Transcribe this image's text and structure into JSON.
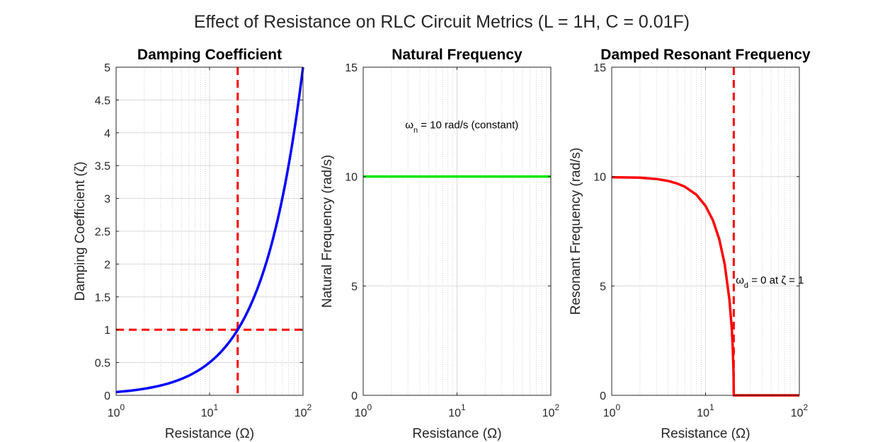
{
  "figure": {
    "title": "Effect of Resistance on RLC Circuit Metrics (L = 1H, C = 0.01F)"
  },
  "colors": {
    "zeta_line": "#0000ff",
    "natural_line": "#00e600",
    "damped_line": "#ff0000",
    "reference_line": "#ff0000"
  },
  "chart_data": [
    {
      "type": "line",
      "title": "Damping Coefficient",
      "xlabel": "Resistance (Ω)",
      "ylabel": "Damping Coefficient (ζ)",
      "xscale": "log",
      "xlim": [
        1,
        100
      ],
      "ylim": [
        0,
        5
      ],
      "yticks": [
        0,
        0.5,
        1,
        1.5,
        2,
        2.5,
        3,
        3.5,
        4,
        4.5,
        5
      ],
      "xticks": [
        1,
        10,
        100
      ],
      "grid": true,
      "series": [
        {
          "x": [
            1,
            1.5,
            2,
            3,
            4,
            5,
            7,
            10,
            15,
            20,
            30,
            40,
            50,
            70,
            100
          ],
          "y": [
            0.05,
            0.075,
            0.1,
            0.15,
            0.2,
            0.25,
            0.35,
            0.5,
            0.75,
            1.0,
            1.5,
            2.0,
            2.5,
            3.5,
            5.0
          ]
        }
      ],
      "reference_lines": [
        {
          "orientation": "vertical",
          "x": 20
        },
        {
          "orientation": "horizontal",
          "y": 1
        }
      ],
      "annotations": []
    },
    {
      "type": "line",
      "title": "Natural Frequency",
      "xlabel": "Resistance (Ω)",
      "ylabel": "Natural Frequency (rad/s)",
      "xscale": "log",
      "xlim": [
        1,
        100
      ],
      "ylim": [
        0,
        15
      ],
      "yticks": [
        0,
        5,
        10,
        15
      ],
      "xticks": [
        1,
        10,
        100
      ],
      "grid": true,
      "series": [
        {
          "x": [
            1,
            100
          ],
          "y": [
            10,
            10
          ]
        }
      ],
      "reference_lines": [],
      "annotations": [
        {
          "main": "ω",
          "sub": "n",
          "rest": " = 10 rad/s (constant)",
          "x": 2.8,
          "y": 12.2
        }
      ]
    },
    {
      "type": "line",
      "title": "Damped Resonant Frequency",
      "xlabel": "Resistance (Ω)",
      "ylabel": "Resonant Frequency (rad/s)",
      "xscale": "log",
      "xlim": [
        1,
        100
      ],
      "ylim": [
        0,
        15
      ],
      "yticks": [
        0,
        5,
        10,
        15
      ],
      "xticks": [
        1,
        10,
        100
      ],
      "grid": true,
      "series": [
        {
          "x": [
            1,
            2,
            3,
            4,
            5,
            6,
            8,
            10,
            12,
            14,
            16,
            18,
            19,
            19.5,
            19.9,
            20,
            30,
            50,
            100
          ],
          "y": [
            9.97,
            9.95,
            9.89,
            9.8,
            9.68,
            9.54,
            9.17,
            8.66,
            8.0,
            7.14,
            6.0,
            4.36,
            3.12,
            2.22,
            1.0,
            0,
            0,
            0,
            0
          ]
        }
      ],
      "reference_lines": [
        {
          "orientation": "vertical",
          "x": 20
        }
      ],
      "annotations": [
        {
          "main": "ω",
          "sub": "d",
          "rest": " = 0 at ζ = 1",
          "x": 21,
          "y": 5.1
        }
      ]
    }
  ]
}
